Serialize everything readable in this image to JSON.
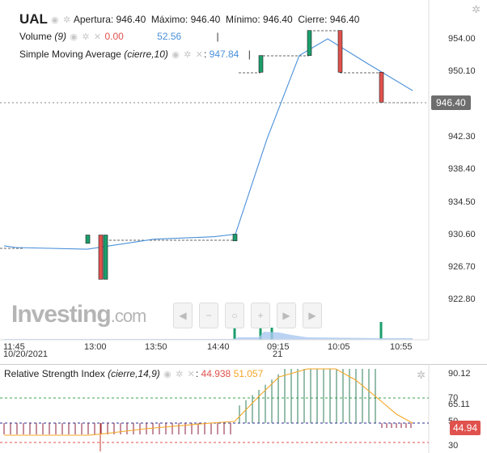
{
  "symbol": "UAL",
  "ohlc": {
    "open_label": "Apertura:",
    "open_value": "946.40",
    "high_label": "Máximo:",
    "high_value": "946.40",
    "low_label": "Mínimo:",
    "low_value": "946.40",
    "close_label": "Cierre:",
    "close_value": "946.40"
  },
  "volume": {
    "label": "Volume",
    "param": "(9)",
    "value1": "0.00",
    "value2": "52.56"
  },
  "sma": {
    "label": "Simple Moving Average",
    "param": "(cierre,10)",
    "value": "947.84"
  },
  "price_axis": [
    "954.00",
    "950.10",
    "946.20",
    "942.30",
    "938.40",
    "934.50",
    "930.60",
    "926.70",
    "922.80"
  ],
  "current_price": "946.40",
  "time_axis": [
    "11:45",
    "13:00",
    "13:50",
    "14:40",
    "09:15",
    "10:05",
    "10:55"
  ],
  "date_labels": [
    "10/20/2021",
    "21"
  ],
  "watermark": {
    "brand": "Investing",
    "suffix": ".com"
  },
  "rsi": {
    "label": "Relative Strength Index",
    "param": "(cierre,14,9)",
    "value1": "44.938",
    "value2": "51.057",
    "axis": [
      "90.12",
      "70",
      "65.11",
      "50",
      "30"
    ],
    "current_value": "44.94"
  },
  "colors": {
    "up": "#1b9e6b",
    "down": "#e0524d",
    "sma": "#4a90d9",
    "rsi_line": "#f5a623",
    "rsi_bars": "#2e7d5b",
    "tag_dark": "#6e6e6e",
    "tag_red": "#e0524d"
  },
  "icons": [
    "eye-icon",
    "gear-icon",
    "close-icon",
    "settings-icon"
  ],
  "chart_data": {
    "type": "line",
    "price_points": [
      {
        "t": "11:45",
        "v": 929.2
      },
      {
        "t": "12:10",
        "v": 929.0
      },
      {
        "t": "13:00",
        "v": 928.8
      },
      {
        "t": "13:50",
        "v": 930.0
      },
      {
        "t": "14:40",
        "v": 930.3
      },
      {
        "t": "14:55",
        "v": 930.6
      },
      {
        "t": "09:15",
        "v": 942.0
      },
      {
        "t": "09:40",
        "v": 952.0
      },
      {
        "t": "10:05",
        "v": 954.0
      },
      {
        "t": "10:30",
        "v": 951.0
      },
      {
        "t": "10:55",
        "v": 947.8
      }
    ],
    "candles": [
      {
        "t": "13:00",
        "open": 929.5,
        "close": 930.5,
        "dir": "up"
      },
      {
        "t": "13:03",
        "open": 930.5,
        "close": 925.2,
        "dir": "down"
      },
      {
        "t": "13:06",
        "open": 925.2,
        "close": 930.5,
        "dir": "up"
      },
      {
        "t": "14:45",
        "open": 929.8,
        "close": 930.6,
        "dir": "up"
      },
      {
        "t": "09:10",
        "open": 950.0,
        "close": 952.0,
        "dir": "up"
      },
      {
        "t": "09:55",
        "open": 952.0,
        "close": 955.0,
        "dir": "up"
      },
      {
        "t": "10:10",
        "open": 955.0,
        "close": 950.0,
        "dir": "down"
      },
      {
        "t": "10:45",
        "open": 950.0,
        "close": 946.4,
        "dir": "down"
      }
    ],
    "ylim": [
      922.0,
      956.0
    ]
  }
}
